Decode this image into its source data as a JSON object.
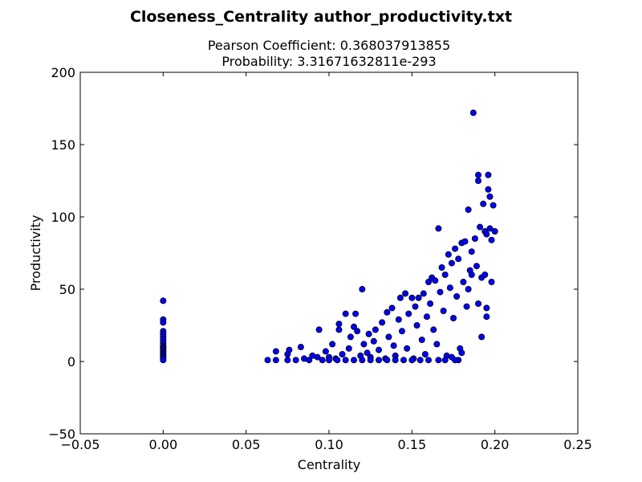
{
  "chart_data": {
    "type": "scatter",
    "title": "Closeness_Centrality author_productivity.txt",
    "subtitle_lines": [
      "Pearson Coefficient: 0.368037913855",
      "Probability: 3.31671632811e-293"
    ],
    "xlabel": "Centrality",
    "ylabel": "Productivity",
    "xlim": [
      -0.05,
      0.25
    ],
    "ylim": [
      -50,
      200
    ],
    "xticks": [
      -0.05,
      0.0,
      0.05,
      0.1,
      0.15,
      0.2,
      0.25
    ],
    "xtick_labels": [
      "−0.05",
      "0.00",
      "0.05",
      "0.10",
      "0.15",
      "0.20",
      "0.25"
    ],
    "yticks": [
      -50,
      0,
      50,
      100,
      150,
      200
    ],
    "ytick_labels": [
      "−50",
      "0",
      "50",
      "100",
      "150",
      "200"
    ],
    "grid": false,
    "marker_color": "#0000ff",
    "marker_edge_color": "#000000",
    "series": [
      {
        "points": [
          [
            0.0,
            42
          ],
          [
            0.0,
            29
          ],
          [
            0.0,
            27
          ],
          [
            0.0,
            21
          ],
          [
            0.0,
            19
          ],
          [
            0.0,
            17
          ],
          [
            0.0,
            15
          ],
          [
            0.0,
            13
          ],
          [
            0.0,
            11
          ],
          [
            0.0,
            10
          ],
          [
            0.0,
            9
          ],
          [
            0.0,
            8
          ],
          [
            0.0,
            7
          ],
          [
            0.0,
            6
          ],
          [
            0.0,
            5
          ],
          [
            0.0,
            4
          ],
          [
            0.0,
            3
          ],
          [
            0.0,
            2
          ],
          [
            0.0,
            1
          ],
          [
            0.063,
            1
          ],
          [
            0.068,
            1
          ],
          [
            0.068,
            7
          ],
          [
            0.075,
            1
          ],
          [
            0.075,
            5
          ],
          [
            0.076,
            8
          ],
          [
            0.08,
            1
          ],
          [
            0.083,
            10
          ],
          [
            0.085,
            2
          ],
          [
            0.088,
            1
          ],
          [
            0.09,
            4
          ],
          [
            0.093,
            3
          ],
          [
            0.094,
            22
          ],
          [
            0.096,
            1
          ],
          [
            0.098,
            7
          ],
          [
            0.1,
            3
          ],
          [
            0.102,
            12
          ],
          [
            0.104,
            2
          ],
          [
            0.106,
            26
          ],
          [
            0.106,
            22
          ],
          [
            0.108,
            5
          ],
          [
            0.11,
            33
          ],
          [
            0.112,
            9
          ],
          [
            0.113,
            17
          ],
          [
            0.115,
            24
          ],
          [
            0.116,
            33
          ],
          [
            0.117,
            21
          ],
          [
            0.119,
            4
          ],
          [
            0.12,
            50
          ],
          [
            0.121,
            12
          ],
          [
            0.123,
            6
          ],
          [
            0.124,
            19
          ],
          [
            0.125,
            3
          ],
          [
            0.127,
            14
          ],
          [
            0.128,
            22
          ],
          [
            0.13,
            8
          ],
          [
            0.132,
            27
          ],
          [
            0.134,
            2
          ],
          [
            0.135,
            34
          ],
          [
            0.136,
            17
          ],
          [
            0.138,
            37
          ],
          [
            0.139,
            11
          ],
          [
            0.14,
            4
          ],
          [
            0.142,
            29
          ],
          [
            0.143,
            44
          ],
          [
            0.144,
            21
          ],
          [
            0.146,
            47
          ],
          [
            0.147,
            9
          ],
          [
            0.148,
            33
          ],
          [
            0.15,
            44
          ],
          [
            0.151,
            2
          ],
          [
            0.152,
            38
          ],
          [
            0.153,
            25
          ],
          [
            0.154,
            44
          ],
          [
            0.156,
            15
          ],
          [
            0.157,
            47
          ],
          [
            0.158,
            5
          ],
          [
            0.159,
            31
          ],
          [
            0.16,
            55
          ],
          [
            0.161,
            40
          ],
          [
            0.162,
            58
          ],
          [
            0.163,
            22
          ],
          [
            0.164,
            56
          ],
          [
            0.165,
            12
          ],
          [
            0.166,
            92
          ],
          [
            0.167,
            48
          ],
          [
            0.168,
            65
          ],
          [
            0.169,
            35
          ],
          [
            0.17,
            60
          ],
          [
            0.171,
            4
          ],
          [
            0.172,
            74
          ],
          [
            0.173,
            51
          ],
          [
            0.174,
            68
          ],
          [
            0.175,
            30
          ],
          [
            0.176,
            78
          ],
          [
            0.177,
            45
          ],
          [
            0.178,
            71
          ],
          [
            0.179,
            9
          ],
          [
            0.18,
            82
          ],
          [
            0.181,
            55
          ],
          [
            0.182,
            83
          ],
          [
            0.183,
            38
          ],
          [
            0.184,
            105
          ],
          [
            0.185,
            63
          ],
          [
            0.186,
            76
          ],
          [
            0.187,
            172
          ],
          [
            0.188,
            85
          ],
          [
            0.189,
            66
          ],
          [
            0.19,
            129
          ],
          [
            0.19,
            125
          ],
          [
            0.191,
            93
          ],
          [
            0.192,
            58
          ],
          [
            0.193,
            109
          ],
          [
            0.194,
            90
          ],
          [
            0.194,
            60
          ],
          [
            0.195,
            88
          ],
          [
            0.196,
            129
          ],
          [
            0.196,
            119
          ],
          [
            0.197,
            114
          ],
          [
            0.197,
            92
          ],
          [
            0.198,
            84
          ],
          [
            0.199,
            108
          ],
          [
            0.2,
            90
          ],
          [
            0.192,
            17
          ],
          [
            0.19,
            40
          ],
          [
            0.195,
            31
          ],
          [
            0.195,
            37
          ],
          [
            0.198,
            55
          ],
          [
            0.186,
            60
          ],
          [
            0.184,
            50
          ],
          [
            0.18,
            6
          ],
          [
            0.178,
            1
          ],
          [
            0.176,
            1
          ],
          [
            0.174,
            3
          ],
          [
            0.17,
            1
          ],
          [
            0.166,
            1
          ],
          [
            0.16,
            1
          ],
          [
            0.155,
            1
          ],
          [
            0.15,
            1
          ],
          [
            0.145,
            1
          ],
          [
            0.14,
            1
          ],
          [
            0.135,
            1
          ],
          [
            0.13,
            1
          ],
          [
            0.125,
            1
          ],
          [
            0.12,
            1
          ],
          [
            0.115,
            1
          ],
          [
            0.11,
            1
          ],
          [
            0.105,
            1
          ],
          [
            0.1,
            1
          ]
        ]
      }
    ]
  }
}
